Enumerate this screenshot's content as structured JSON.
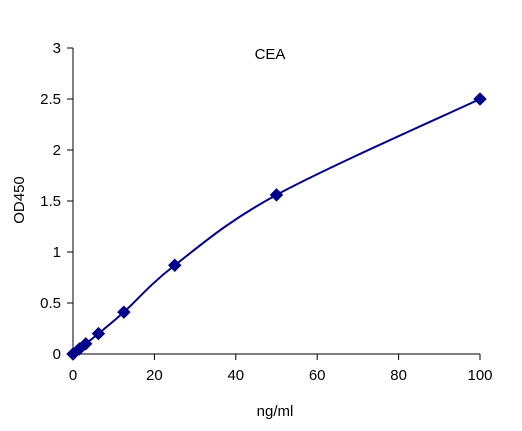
{
  "chart_data": {
    "type": "scatter",
    "title": "CEA",
    "xlabel": "ng/ml",
    "ylabel": "OD450",
    "xlim": [
      0,
      100
    ],
    "ylim": [
      0,
      3
    ],
    "xticks": [
      "0",
      "20",
      "40",
      "60",
      "80",
      "100"
    ],
    "yticks": [
      "0",
      "0.5",
      "1",
      "1.5",
      "2",
      "2.5",
      "3"
    ],
    "grid": false,
    "legend": "none",
    "series": [
      {
        "x": [
          0,
          1.56,
          3.13,
          6.25,
          12.5,
          25,
          50,
          100
        ],
        "y": [
          0.0,
          0.05,
          0.1,
          0.2,
          0.41,
          0.87,
          1.56,
          2.5
        ],
        "marker": "diamond",
        "color": "#00008B",
        "fit_line": "smooth"
      }
    ]
  }
}
